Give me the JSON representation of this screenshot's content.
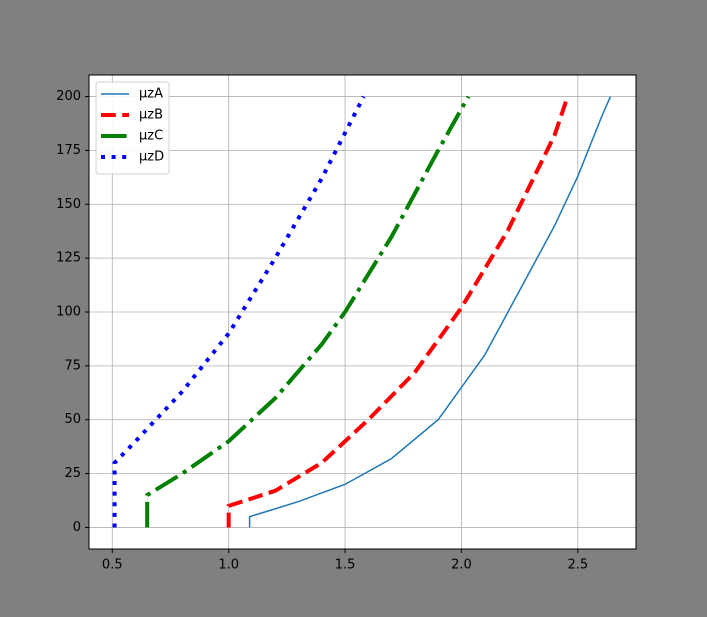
{
  "chart_data": {
    "type": "line",
    "series": [
      {
        "name": "μzA",
        "color": "#1f77b4",
        "linestyle": "solid",
        "linewidth": 1.5,
        "x": [
          1.09,
          1.09,
          1.15,
          1.3,
          1.5,
          1.7,
          1.9,
          2.0,
          2.1,
          2.2,
          2.3,
          2.4,
          2.5,
          2.6,
          2.64
        ],
        "values": [
          0,
          5,
          7,
          12,
          20,
          32,
          50,
          65,
          80,
          100,
          120,
          140,
          163,
          190,
          200
        ]
      },
      {
        "name": "μzB",
        "color": "#ff0000",
        "linestyle": "dashed",
        "linewidth": 4,
        "x": [
          1.0,
          1.0,
          1.2,
          1.4,
          1.6,
          1.8,
          2.0,
          2.2,
          2.4,
          2.45
        ],
        "values": [
          0,
          10,
          17,
          30,
          50,
          72,
          102,
          138,
          182,
          198
        ]
      },
      {
        "name": "μzC",
        "color": "#008000",
        "linestyle": "dashdot",
        "linewidth": 4,
        "x": [
          0.65,
          0.65,
          0.8,
          1.0,
          1.2,
          1.4,
          1.5,
          1.7,
          1.9,
          2.03
        ],
        "values": [
          0,
          15,
          25,
          40,
          60,
          85,
          100,
          135,
          175,
          200
        ]
      },
      {
        "name": "μzD",
        "color": "#0000ff",
        "linestyle": "dotted",
        "linewidth": 4,
        "x": [
          0.51,
          0.51,
          0.6,
          0.8,
          1.0,
          1.2,
          1.4,
          1.58
        ],
        "values": [
          0,
          30,
          40,
          63,
          90,
          125,
          162,
          200
        ]
      }
    ],
    "xlim": [
      0.4,
      2.75
    ],
    "ylim": [
      -10,
      210
    ],
    "xticks": [
      0.5,
      {
        "value": 1,
        "label": "1.0"
      },
      1.5,
      {
        "value": 2,
        "label": "2.0"
      },
      2.5
    ],
    "yticks": [
      0,
      25,
      50,
      75,
      100,
      125,
      150,
      175,
      200
    ],
    "grid": true,
    "legend": "upper left"
  }
}
